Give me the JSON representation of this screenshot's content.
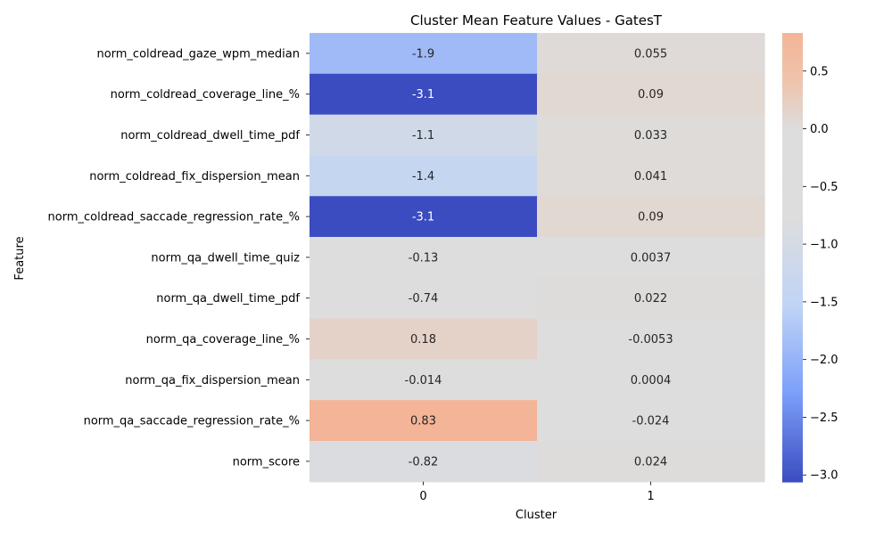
{
  "chart_data": {
    "type": "heatmap",
    "title": "Cluster Mean Feature Values - GatesT",
    "xlabel": "Cluster",
    "ylabel": "Feature",
    "columns": [
      "0",
      "1"
    ],
    "rows": [
      "norm_coldread_gaze_wpm_median",
      "norm_coldread_coverage_line_%",
      "norm_coldread_dwell_time_pdf",
      "norm_coldread_fix_dispersion_mean",
      "norm_coldread_saccade_regression_rate_%",
      "norm_qa_dwell_time_quiz",
      "norm_qa_dwell_time_pdf",
      "norm_qa_coverage_line_%",
      "norm_qa_fix_dispersion_mean",
      "norm_qa_saccade_regression_rate_%",
      "norm_score"
    ],
    "values": [
      [
        -1.9,
        0.055
      ],
      [
        -3.1,
        0.09
      ],
      [
        -1.1,
        0.033
      ],
      [
        -1.4,
        0.041
      ],
      [
        -3.1,
        0.09
      ],
      [
        -0.13,
        0.0037
      ],
      [
        -0.74,
        0.022
      ],
      [
        0.18,
        -0.0053
      ],
      [
        -0.014,
        0.0004
      ],
      [
        0.83,
        -0.024
      ],
      [
        -0.82,
        0.024
      ]
    ],
    "cell_labels": [
      [
        "-1.9",
        "0.055"
      ],
      [
        "-3.1",
        "0.09"
      ],
      [
        "-1.1",
        "0.033"
      ],
      [
        "-1.4",
        "0.041"
      ],
      [
        "-3.1",
        "0.09"
      ],
      [
        "-0.13",
        "0.0037"
      ],
      [
        "-0.74",
        "0.022"
      ],
      [
        "0.18",
        "-0.0053"
      ],
      [
        "-0.014",
        "0.0004"
      ],
      [
        "0.83",
        "-0.024"
      ],
      [
        "-0.82",
        "0.024"
      ]
    ],
    "colormap": "coolwarm",
    "value_range": [
      -3.06,
      0.83
    ],
    "colorbar": {
      "ticks": [
        0.5,
        0.0,
        -0.5,
        -1.0,
        -1.5,
        -2.0,
        -2.5,
        -3.0
      ],
      "tick_labels": [
        "0.5",
        "0.0",
        "−0.5",
        "−1.0",
        "−1.5",
        "−2.0",
        "−2.5",
        "−3.0"
      ]
    }
  }
}
